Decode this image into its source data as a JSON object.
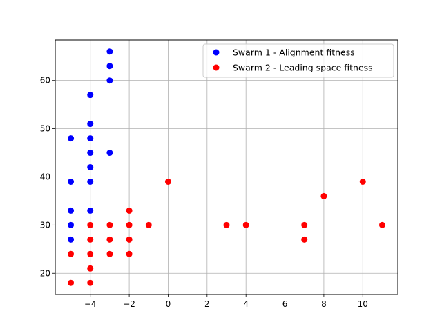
{
  "chart_data": {
    "type": "scatter",
    "title": "",
    "xlabel": "",
    "ylabel": "",
    "xlim": [
      -5.8,
      11.8
    ],
    "ylim": [
      15.6,
      68.4
    ],
    "xticks": [
      -4,
      -2,
      0,
      2,
      4,
      6,
      8,
      10
    ],
    "xtick_labels": [
      "−4",
      "−2",
      "0",
      "2",
      "4",
      "6",
      "8",
      "10"
    ],
    "yticks": [
      20,
      30,
      40,
      50,
      60
    ],
    "ytick_labels": [
      "20",
      "30",
      "40",
      "50",
      "60"
    ],
    "grid": true,
    "legend_position": "top-right",
    "series": [
      {
        "name": "Swarm 1 - Alignment fitness",
        "color": "#0000ff",
        "points": [
          [
            -5,
            48
          ],
          [
            -5,
            39
          ],
          [
            -5,
            33
          ],
          [
            -5,
            30
          ],
          [
            -5,
            27
          ],
          [
            -4,
            57
          ],
          [
            -4,
            51
          ],
          [
            -4,
            48
          ],
          [
            -4,
            45
          ],
          [
            -4,
            42
          ],
          [
            -4,
            39
          ],
          [
            -4,
            33
          ],
          [
            -3,
            66
          ],
          [
            -3,
            63
          ],
          [
            -3,
            60
          ],
          [
            -3,
            45
          ]
        ]
      },
      {
        "name": "Swarm 2 - Leading space fitness",
        "color": "#ff0000",
        "points": [
          [
            -5,
            24
          ],
          [
            -5,
            18
          ],
          [
            -4,
            30
          ],
          [
            -4,
            27
          ],
          [
            -4,
            24
          ],
          [
            -4,
            21
          ],
          [
            -4,
            18
          ],
          [
            -3,
            30
          ],
          [
            -3,
            27
          ],
          [
            -3,
            24
          ],
          [
            -2,
            33
          ],
          [
            -2,
            30
          ],
          [
            -2,
            27
          ],
          [
            -2,
            24
          ],
          [
            -1,
            30
          ],
          [
            0,
            39
          ],
          [
            3,
            30
          ],
          [
            4,
            30
          ],
          [
            7,
            30
          ],
          [
            7,
            27
          ],
          [
            8,
            36
          ],
          [
            10,
            39
          ],
          [
            11,
            30
          ]
        ]
      }
    ]
  }
}
